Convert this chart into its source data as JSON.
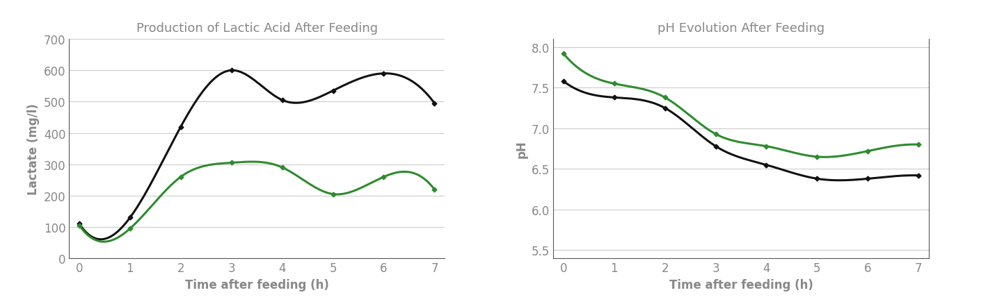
{
  "left_title": "Production of Lactic Acid After Feeding",
  "right_title": "pH Evolution After Feeding",
  "left_xlabel": "Time after feeding (h)",
  "left_ylabel": "Lactate (mg/l)",
  "right_xlabel": "Time after feeding (h)",
  "right_ylabel": "pH",
  "x": [
    0,
    1,
    2,
    3,
    4,
    5,
    6,
    7
  ],
  "left_black": [
    110,
    130,
    420,
    600,
    505,
    535,
    590,
    495
  ],
  "left_green": [
    105,
    95,
    260,
    305,
    290,
    205,
    260,
    220
  ],
  "right_black": [
    7.58,
    7.38,
    7.25,
    6.78,
    6.55,
    6.38,
    6.38,
    6.42
  ],
  "right_green": [
    7.92,
    7.55,
    7.38,
    6.93,
    6.78,
    6.65,
    6.72,
    6.8
  ],
  "left_ylim": [
    0,
    700
  ],
  "left_yticks": [
    0,
    100,
    200,
    300,
    400,
    500,
    600,
    700
  ],
  "right_ylim": [
    5.4,
    8.1
  ],
  "right_yticks": [
    5.5,
    6.0,
    6.5,
    7.0,
    7.5,
    8.0
  ],
  "black_color": "#111111",
  "green_color": "#2e8b2e",
  "title_color": "#888888",
  "axis_color": "#555555",
  "tick_color": "#888888",
  "bg_color": "#ffffff",
  "grid_color": "#cccccc",
  "line_width": 2.2,
  "marker_size": 3.5,
  "marker_style": "D",
  "title_fontsize": 13,
  "label_fontsize": 12,
  "tick_fontsize": 12
}
